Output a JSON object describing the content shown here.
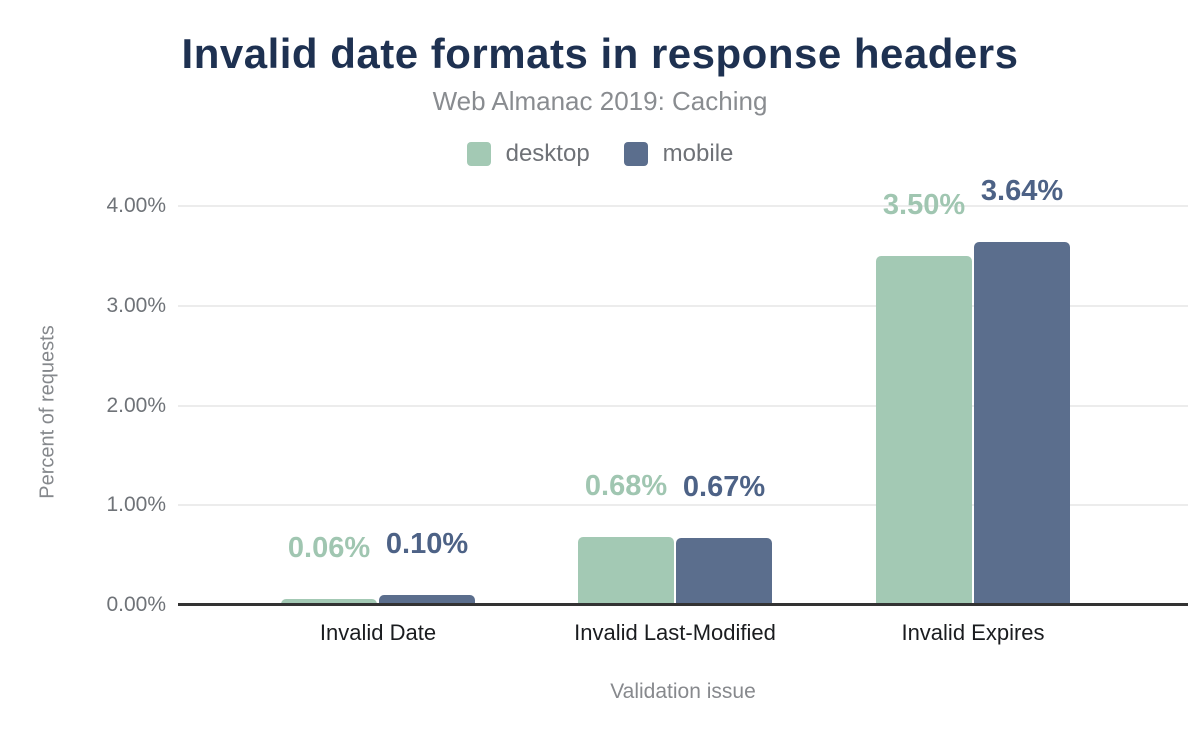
{
  "header": {
    "title": "Invalid date formats in response headers",
    "subtitle": "Web Almanac 2019: Caching"
  },
  "chart_data": {
    "type": "bar",
    "categories": [
      "Invalid Date",
      "Invalid Last-Modified",
      "Invalid Expires"
    ],
    "series": [
      {
        "name": "desktop",
        "color": "#a3c9b4",
        "label_color": "#a0c6b1",
        "values": [
          0.06,
          0.68,
          3.5
        ],
        "value_labels": [
          "0.06%",
          "0.68%",
          "3.50%"
        ]
      },
      {
        "name": "mobile",
        "color": "#5b6e8d",
        "label_color": "#4d6286",
        "values": [
          0.1,
          0.67,
          3.64
        ],
        "value_labels": [
          "0.10%",
          "0.67%",
          "3.64%"
        ]
      }
    ],
    "title": "Invalid date formats in response headers",
    "subtitle": "Web Almanac 2019: Caching",
    "xlabel": "Validation issue",
    "ylabel": "Percent of requests",
    "ylim": [
      0,
      4
    ],
    "ytick_labels": [
      "0.00%",
      "1.00%",
      "2.00%",
      "3.00%",
      "4.00%"
    ],
    "ytick_values": [
      0,
      1,
      2,
      3,
      4
    ],
    "grid": true,
    "legend_position": "top"
  },
  "colors": {
    "title": "#1e3151",
    "subtitle": "#898c90",
    "axis_line": "#333333",
    "gridline": "#ececec",
    "background": "#ffffff"
  }
}
